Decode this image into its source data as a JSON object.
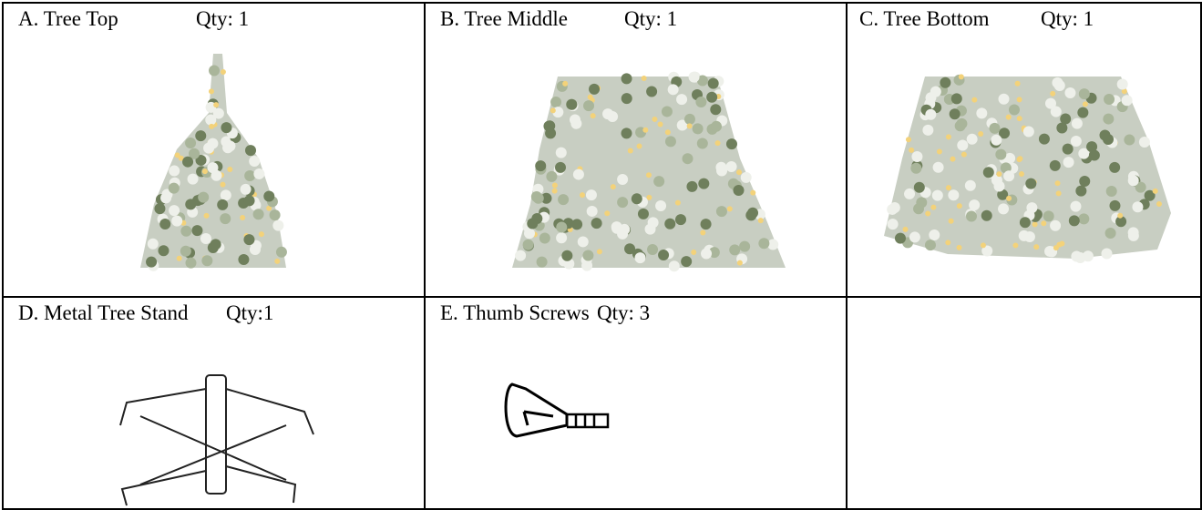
{
  "table": {
    "cells": [
      {
        "name": "A. Tree Top",
        "qty": "Qty: 1"
      },
      {
        "name": "B. Tree Middle",
        "qty": "Qty: 1"
      },
      {
        "name": "C. Tree Bottom",
        "qty": "Qty: 1"
      },
      {
        "name": "D. Metal Tree Stand",
        "qty": "Qty:1"
      },
      {
        "name": "E. Thumb Screws",
        "qty": "Qty: 3"
      }
    ]
  }
}
